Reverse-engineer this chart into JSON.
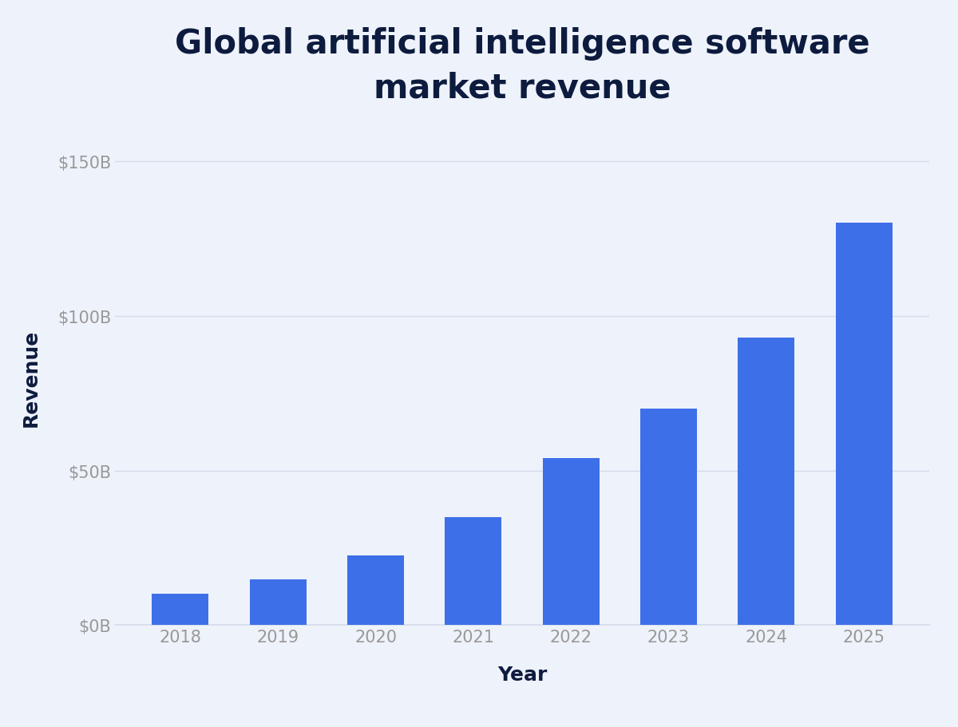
{
  "title": "Global artificial intelligence software\nmarket revenue",
  "xlabel": "Year",
  "ylabel": "Revenue",
  "categories": [
    "2018",
    "2019",
    "2020",
    "2021",
    "2022",
    "2023",
    "2024",
    "2025"
  ],
  "values": [
    10.1,
    14.7,
    22.6,
    34.9,
    54.0,
    70.0,
    93.0,
    130.0
  ],
  "bar_color": "#3d6fe8",
  "background_color": "#eef2fa",
  "title_color": "#0d1b3e",
  "tick_color": "#999999",
  "grid_color": "#d4daea",
  "ylim": [
    0,
    160
  ],
  "yticks": [
    0,
    50,
    100,
    150
  ],
  "ytick_labels": [
    "$0B",
    "$50B",
    "$100B",
    "$150B"
  ],
  "title_fontsize": 30,
  "axis_label_fontsize": 18,
  "tick_fontsize": 15,
  "bar_width": 0.58
}
